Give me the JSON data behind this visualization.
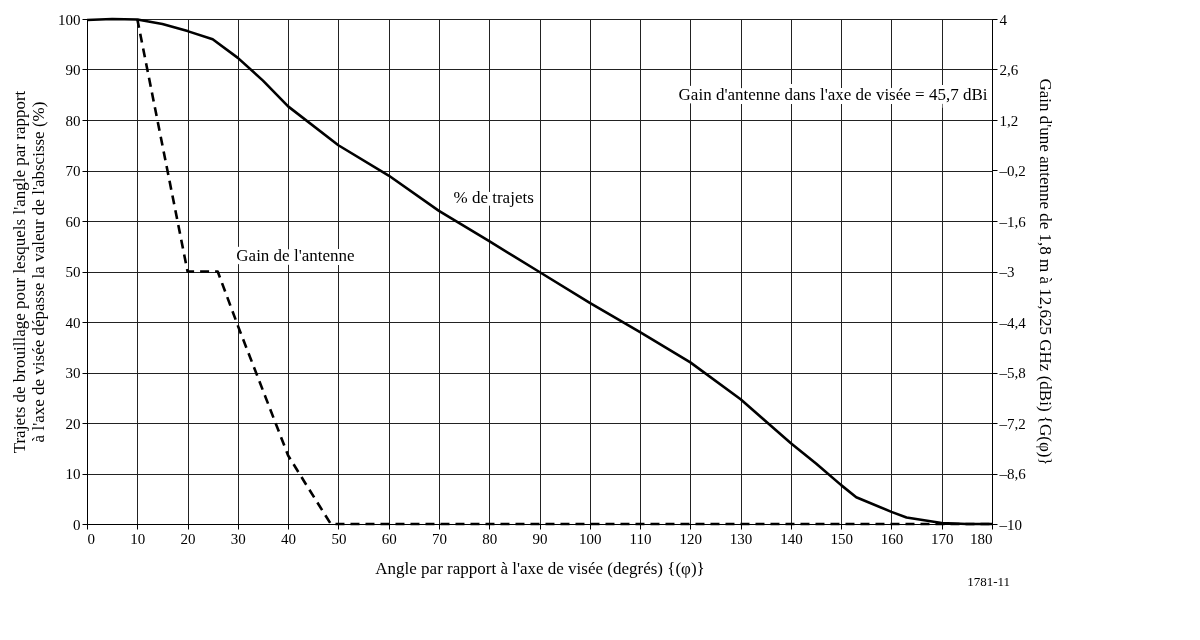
{
  "chart_data": {
    "type": "line",
    "xlabel": "Angle par rapport à l'axe de visée (degrés) {(φ)}",
    "ylabel": "Trajets de brouillage pour lesquels l'angle par rapport\nà l'axe de visée dépasse la valeur de l'abscisse (%)",
    "y2label": "Gain d'une antenne de 1,8 m à 12,625 GHz (dBi) {G(φ)}",
    "xlim": [
      0,
      180
    ],
    "xticks": [
      0,
      10,
      20,
      30,
      40,
      50,
      60,
      70,
      80,
      90,
      100,
      110,
      120,
      130,
      140,
      150,
      160,
      170,
      180
    ],
    "ylim": [
      0,
      100
    ],
    "yticks": [
      0,
      10,
      20,
      30,
      40,
      50,
      60,
      70,
      80,
      90,
      100
    ],
    "y2lim": [
      -10,
      4
    ],
    "y2ticks": [
      4,
      {
        "value": 2.6,
        "label": "2,6"
      },
      {
        "value": 1.2,
        "label": "1,2"
      },
      {
        "value": -0.2,
        "label": "–0,2"
      },
      {
        "value": -1.6,
        "label": "–1,6"
      },
      {
        "value": -3,
        "label": "–3"
      },
      {
        "value": -4.4,
        "label": "–4,4"
      },
      {
        "value": -5.8,
        "label": "–5,8"
      },
      {
        "value": -7.2,
        "label": "–7,2"
      },
      {
        "value": -8.6,
        "label": "–8,6"
      },
      {
        "value": -10,
        "label": "–10"
      }
    ],
    "grid": true,
    "marker": "none",
    "series": [
      {
        "color": "#000000",
        "line_style": "solid",
        "x": [
          0,
          5,
          10,
          15,
          20,
          25,
          30,
          35,
          40,
          50,
          60,
          70,
          80,
          90,
          100,
          110,
          120,
          130,
          140,
          145,
          150,
          153,
          160,
          163,
          170,
          175,
          180
        ],
        "values": [
          99.8,
          100,
          99.9,
          99,
          97.6,
          96,
          92.3,
          87.8,
          82.7,
          75,
          69,
          62,
          56,
          49.9,
          43.8,
          38,
          32,
          24.7,
          16,
          12,
          7.7,
          5.3,
          2.4,
          1.3,
          0.2,
          0,
          0
        ]
      },
      {
        "color": "#000000",
        "line_style": "dashed",
        "axis": "y2",
        "x": [
          10,
          20,
          26,
          30,
          35,
          40,
          44,
          48.5,
          180
        ],
        "values": [
          4,
          -3,
          -3,
          -4.5,
          -6.3,
          -8.1,
          -9,
          -10,
          -10
        ]
      }
    ],
    "annotations": [
      "Gain de l'antenne",
      "% de trajets",
      "Gain d'antenne dans l'axe de visée = 45,7 dBi",
      "1781-11"
    ]
  }
}
